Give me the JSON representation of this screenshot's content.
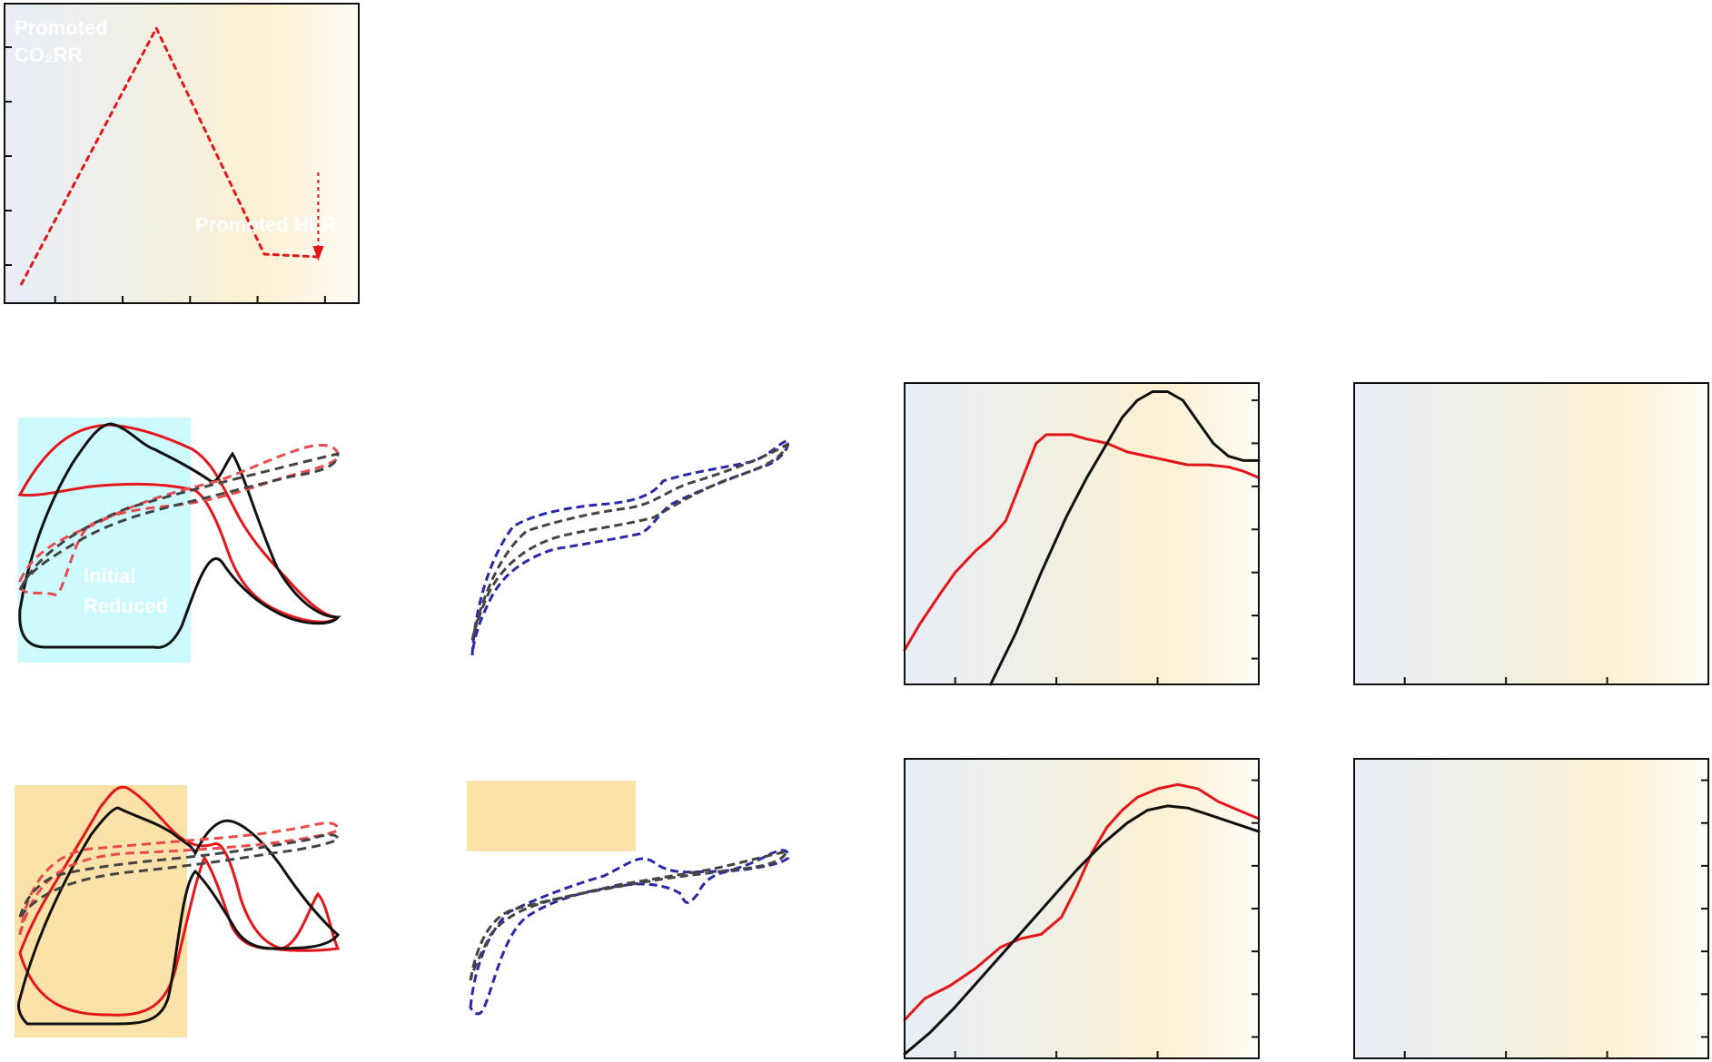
{
  "figure": {
    "gradient": {
      "start": "#e8eef7",
      "middle": "#efefe7",
      "warm": "#fbf0d2",
      "end": "#fffcf5"
    },
    "colors": {
      "red": "#e5161a",
      "black": "#111111",
      "gray_dash": "#444444",
      "red_dash": "#e84c4c",
      "blue_dash": "#2a2aa8",
      "cyan_box": "#ccfaff",
      "orange_box": "#fbe2a8",
      "frame": "#111111"
    }
  },
  "chart_data": [
    {
      "id": "a",
      "type": "line",
      "series": [
        {
          "style": "red-dotted",
          "x": [
            0,
            4,
            7.2,
            8.8
          ],
          "y": [
            0.2,
            9.6,
            1.3,
            1.2
          ]
        }
      ],
      "annotations": [
        {
          "text": [
            "Promoted",
            "CO₂RR"
          ]
        },
        {
          "text": [
            "Promoted HER"
          ]
        }
      ],
      "xlim": [
        -0.5,
        10
      ],
      "ylim": [
        -0.5,
        10.5
      ],
      "xticks": [
        1,
        3,
        5,
        7,
        9
      ],
      "yticks": [
        0.9,
        2.9,
        4.9,
        6.9,
        8.9,
        10.9
      ]
    },
    {
      "id": "b",
      "type": "line",
      "shaded_regions": [
        {
          "color": "cyan"
        }
      ],
      "annotations": [
        {
          "text": [
            "Initial",
            "Reduced"
          ]
        }
      ]
    },
    {
      "id": "c",
      "type": "line"
    },
    {
      "id": "d",
      "type": "line",
      "series": [
        {
          "style": "red",
          "x": [
            0,
            0.3,
            0.7,
            1.0,
            1.4,
            1.7,
            2.0,
            2.3,
            2.6,
            2.8,
            3.0,
            3.3,
            3.6,
            4.0,
            4.4,
            4.8,
            5.2,
            5.6,
            6.0,
            6.4,
            6.7,
            7.0
          ],
          "y": [
            0.8,
            1.4,
            2.1,
            2.6,
            3.1,
            3.4,
            3.8,
            4.7,
            5.6,
            5.8,
            5.8,
            5.8,
            5.7,
            5.6,
            5.4,
            5.3,
            5.2,
            5.1,
            5.1,
            5.05,
            4.95,
            4.8
          ]
        },
        {
          "style": "black",
          "x": [
            1.7,
            2.2,
            2.7,
            3.2,
            3.6,
            4.0,
            4.3,
            4.6,
            4.9,
            5.2,
            5.5,
            5.8,
            6.1,
            6.4,
            6.7,
            7.0
          ],
          "y": [
            0,
            1.2,
            2.6,
            3.9,
            4.8,
            5.6,
            6.2,
            6.6,
            6.8,
            6.8,
            6.6,
            6.1,
            5.6,
            5.3,
            5.2,
            5.2
          ]
        }
      ],
      "xlim": [
        0,
        7
      ],
      "ylim": [
        0,
        7
      ],
      "xticks": [
        1,
        3,
        5
      ],
      "yticks": [
        0.6,
        1.6,
        2.6,
        3.6,
        4.6,
        5.6,
        6.6
      ]
    },
    {
      "id": "e",
      "type": "line",
      "xlim": [
        0,
        7
      ],
      "ylim": [
        0,
        7
      ],
      "xticks": [
        1,
        3,
        5
      ]
    },
    {
      "id": "f",
      "type": "line",
      "shaded_regions": [
        {
          "color": "orange"
        }
      ]
    },
    {
      "id": "g",
      "type": "line",
      "shaded_regions": [
        {
          "color": "orange"
        }
      ]
    },
    {
      "id": "h",
      "type": "line",
      "series": [
        {
          "style": "red",
          "x": [
            0,
            0.4,
            0.9,
            1.4,
            1.9,
            2.3,
            2.7,
            3.1,
            3.4,
            3.7,
            4.0,
            4.3,
            4.6,
            5.0,
            5.4,
            5.8,
            6.2,
            6.6,
            7.0
          ],
          "y": [
            0.9,
            1.4,
            1.7,
            2.1,
            2.6,
            2.8,
            2.9,
            3.3,
            4.0,
            4.8,
            5.4,
            5.8,
            6.1,
            6.3,
            6.4,
            6.3,
            6.0,
            5.8,
            5.6
          ]
        },
        {
          "style": "black",
          "x": [
            0,
            0.5,
            1.0,
            1.6,
            2.2,
            2.8,
            3.4,
            3.9,
            4.4,
            4.8,
            5.2,
            5.6,
            6.0,
            6.5,
            7.0
          ],
          "y": [
            0.1,
            0.6,
            1.2,
            2.0,
            2.8,
            3.6,
            4.4,
            5.0,
            5.5,
            5.8,
            5.9,
            5.85,
            5.7,
            5.5,
            5.3
          ]
        }
      ],
      "xlim": [
        0,
        7
      ],
      "ylim": [
        0,
        7
      ],
      "xticks": [
        1,
        3,
        5
      ],
      "yticks": [
        0.5,
        1.5,
        2.5,
        3.5,
        4.5,
        5.5,
        6.5
      ]
    },
    {
      "id": "i",
      "type": "line",
      "xlim": [
        0,
        7
      ],
      "ylim": [
        0,
        7
      ],
      "xticks": [
        1,
        3,
        5
      ],
      "yticks": [
        0.5,
        1.5,
        2.5,
        3.5,
        4.5,
        5.5,
        6.5
      ]
    }
  ]
}
